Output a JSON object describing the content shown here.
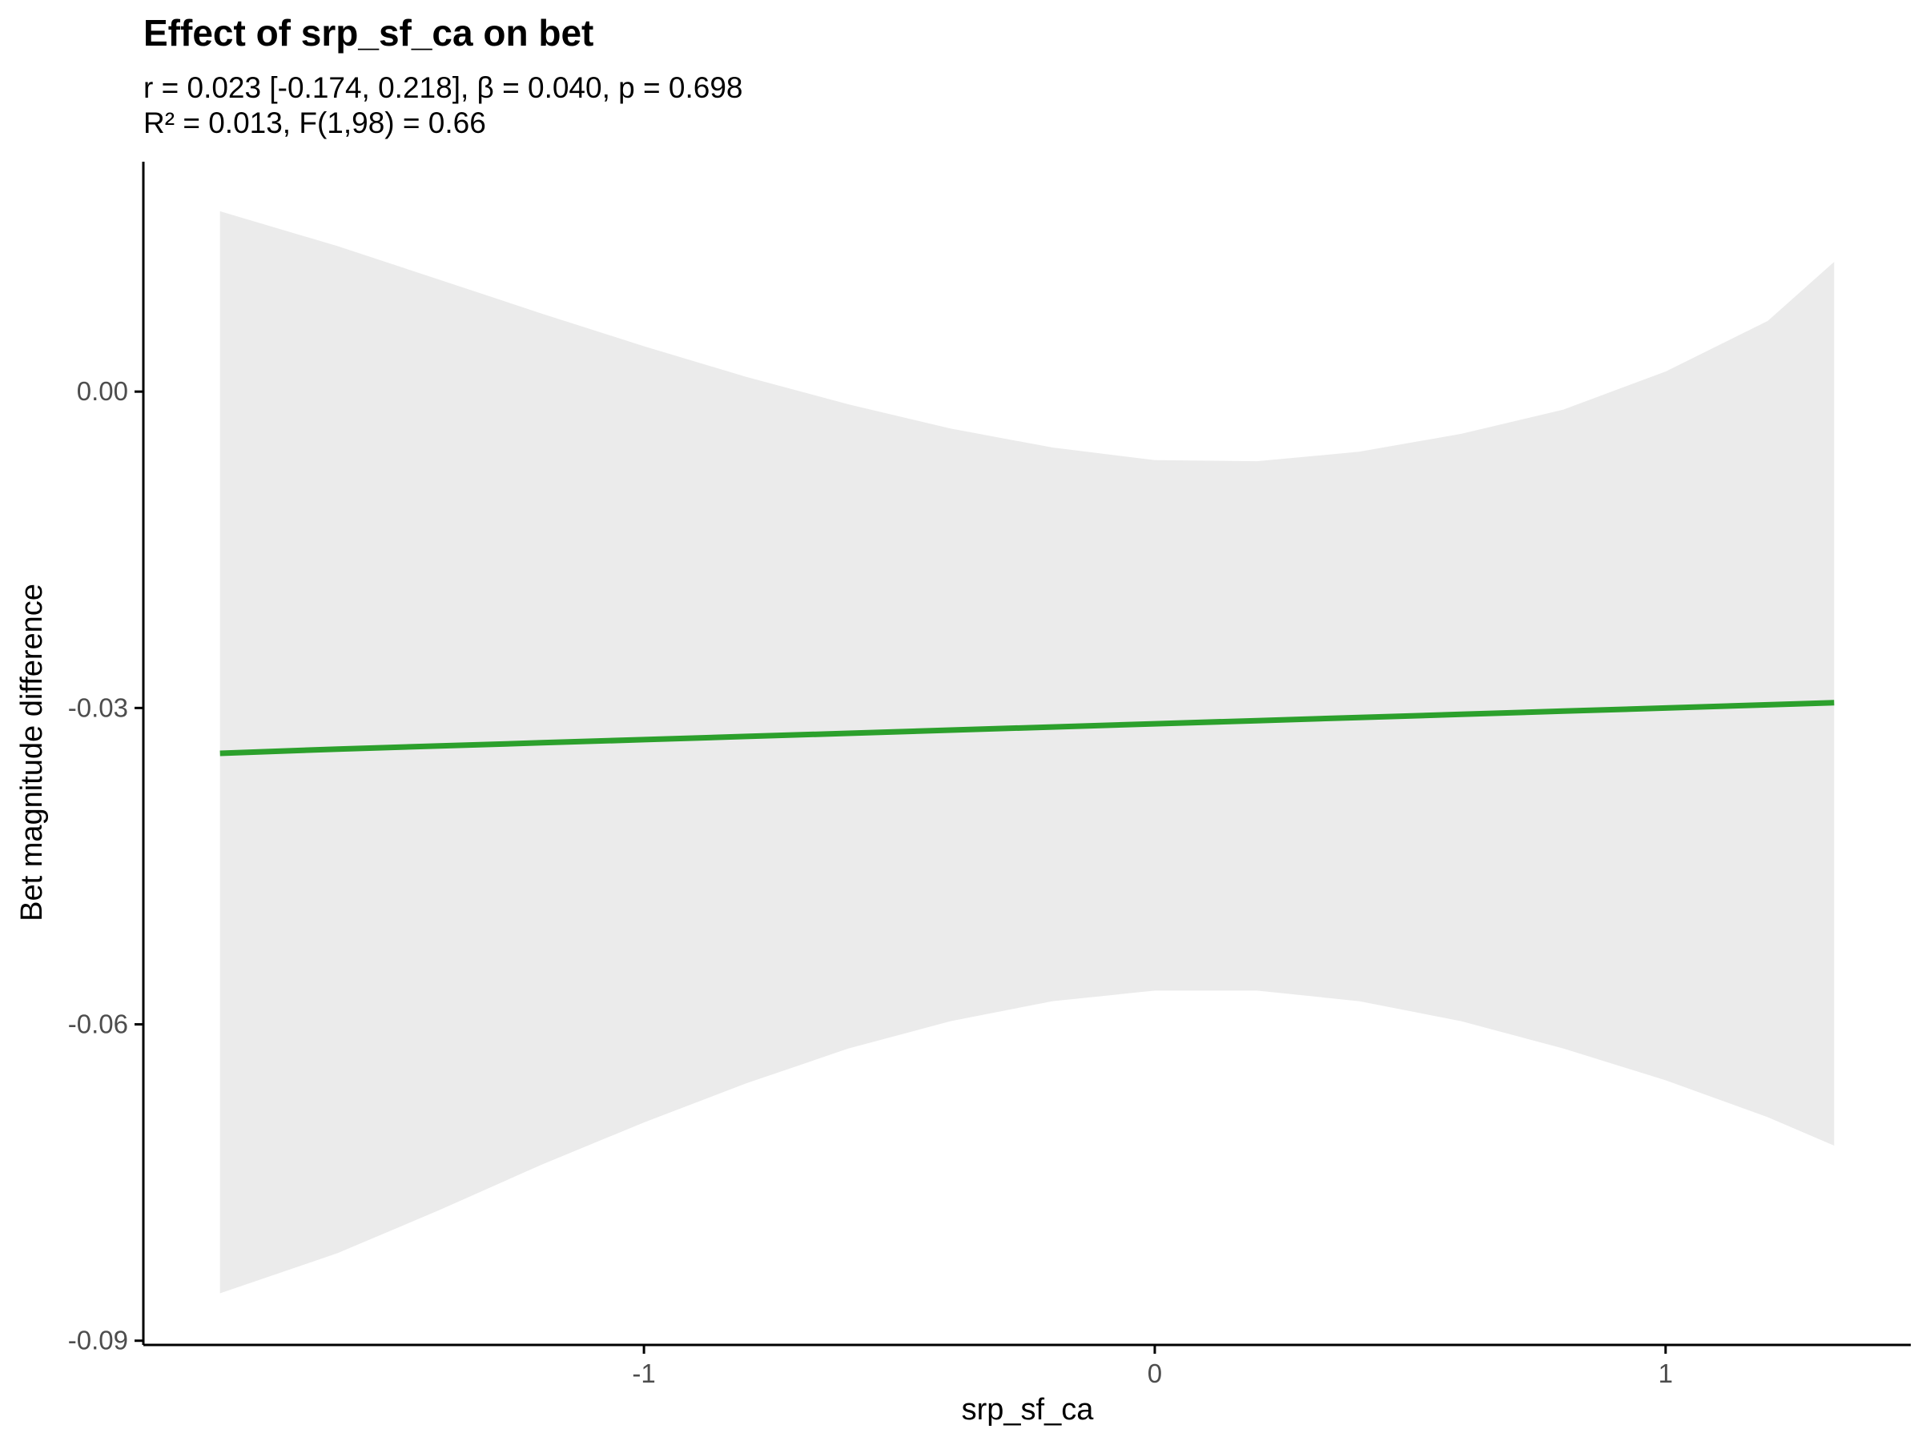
{
  "chart_data": {
    "type": "line",
    "title": "Effect of srp_sf_ca on bet",
    "subtitle_lines": [
      "r = 0.023 [-0.174, 0.218], β = 0.040, p = 0.698",
      "R² = 0.013, F(1,98) = 0.66"
    ],
    "xlabel": "srp_sf_ca",
    "ylabel": "Bet magnitude difference",
    "xlim": [
      -1.98,
      1.48
    ],
    "ylim": [
      -0.0904,
      0.0218
    ],
    "x_ticks": [
      -1,
      0,
      1
    ],
    "x_tick_labels": [
      "-1",
      "0",
      "1"
    ],
    "y_ticks": [
      0.0,
      -0.03,
      -0.06,
      -0.09
    ],
    "y_tick_labels": [
      "0.00",
      "-0.03",
      "-0.06",
      "-0.09"
    ],
    "grid": false,
    "legend": "none",
    "colors": {
      "line": "#2ca02c",
      "ribbon": "#ebebeb",
      "axis": "#000000",
      "tick_text": "#4d4d4d"
    },
    "series": [
      {
        "x": [
          -1.83,
          -1.6,
          -1.4,
          -1.2,
          -1.0,
          -0.8,
          -0.6,
          -0.4,
          -0.2,
          0.0,
          0.2,
          0.4,
          0.6,
          0.8,
          1.0,
          1.2,
          1.33
        ],
        "fit": [
          -0.0343,
          -0.0339,
          -0.0336,
          -0.0333,
          -0.033,
          -0.0327,
          -0.0324,
          -0.0321,
          -0.0318,
          -0.0315,
          -0.0312,
          -0.0309,
          -0.0306,
          -0.0303,
          -0.03,
          -0.0297,
          -0.0295
        ],
        "lower": [
          -0.0855,
          -0.0817,
          -0.0776,
          -0.0733,
          -0.0693,
          -0.0656,
          -0.0623,
          -0.0597,
          -0.0578,
          -0.0568,
          -0.0568,
          -0.0578,
          -0.0597,
          -0.0623,
          -0.0653,
          -0.0688,
          -0.0715
        ],
        "upper": [
          0.0171,
          0.0138,
          0.0106,
          0.0074,
          0.0043,
          0.0014,
          -0.0012,
          -0.0035,
          -0.0053,
          -0.0065,
          -0.0066,
          -0.0057,
          -0.004,
          -0.0017,
          0.0019,
          0.0067,
          0.0123
        ]
      }
    ]
  }
}
